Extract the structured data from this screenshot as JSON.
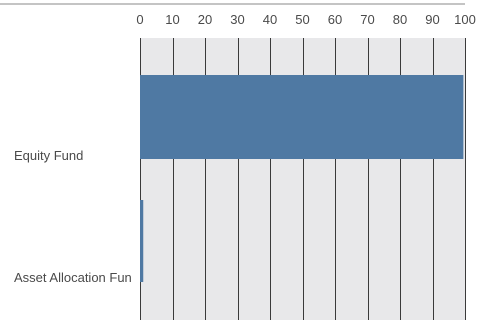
{
  "chart_data": {
    "type": "bar",
    "orientation": "horizontal",
    "title": "",
    "xlabel": "",
    "ylabel": "",
    "categories": [
      "Equity Fund",
      "Asset Allocation Fun"
    ],
    "values": [
      99.5,
      1
    ],
    "xlim": [
      0,
      100
    ],
    "xticks": [
      0,
      10,
      20,
      30,
      40,
      50,
      60,
      70,
      80,
      90,
      100
    ],
    "xtick_labels": [
      "0",
      "10",
      "20",
      "30",
      "40",
      "50",
      "60",
      "70",
      "80",
      "90",
      "100"
    ],
    "x_axis_position": "top",
    "grid": true,
    "legend": "none",
    "colors": {
      "bar": "#4f79a3",
      "plot_background": "#e8e8ea",
      "grid": "#3a3a3a",
      "top_rule": "#8a8a8a",
      "text": "#4a4a4a"
    }
  }
}
